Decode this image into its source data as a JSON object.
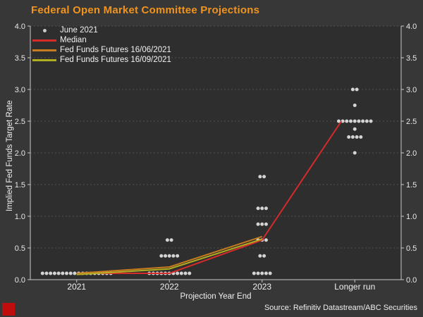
{
  "header": {
    "title": "Federal Open Market Committee Projections",
    "title_color": "#f0941e"
  },
  "footer": {
    "source": "Source: Refinitiv Datastream/ABC Securities",
    "logo_color": "#bf0d0d"
  },
  "chart_data": {
    "type": "scatter",
    "title": "Federal Open Market Committee Projections",
    "xlabel": "Projection Year End",
    "ylabel": "Implied Fed Funds Target Rate",
    "ylim": [
      0.0,
      4.0
    ],
    "ytick_step": 0.5,
    "ytick_labels": [
      "0.0",
      "0.5",
      "1.0",
      "1.5",
      "2.0",
      "2.5",
      "3.0",
      "3.5",
      "4.0"
    ],
    "dual_y_axis": true,
    "grid": "dashed horizontal every 0.5",
    "legend_position": "top-left",
    "categories": [
      "2021",
      "2022",
      "2023",
      "Longer run"
    ],
    "dot_plot": {
      "name": "June 2021",
      "color": "#d4d4d4",
      "distributions": [
        {
          "category": "2021",
          "dots": [
            {
              "rate": 0.1,
              "count": 18
            }
          ]
        },
        {
          "category": "2022",
          "dots": [
            {
              "rate": 0.1,
              "count": 11
            },
            {
              "rate": 0.375,
              "count": 5
            },
            {
              "rate": 0.625,
              "count": 2
            }
          ]
        },
        {
          "category": "2023",
          "dots": [
            {
              "rate": 0.1,
              "count": 5
            },
            {
              "rate": 0.375,
              "count": 2
            },
            {
              "rate": 0.625,
              "count": 3
            },
            {
              "rate": 0.875,
              "count": 3
            },
            {
              "rate": 1.125,
              "count": 3
            },
            {
              "rate": 1.625,
              "count": 2
            }
          ]
        },
        {
          "category": "Longer run",
          "dots": [
            {
              "rate": 2.0,
              "count": 1
            },
            {
              "rate": 2.25,
              "count": 4
            },
            {
              "rate": 2.375,
              "count": 1
            },
            {
              "rate": 2.5,
              "count": 9
            },
            {
              "rate": 2.75,
              "count": 1
            },
            {
              "rate": 3.0,
              "count": 2
            }
          ]
        }
      ]
    },
    "line_series": [
      {
        "name": "Median",
        "color": "#d42b2b",
        "x": [
          "2021",
          "2022",
          "2023",
          "Longer run"
        ],
        "values": [
          0.1,
          0.1,
          0.625,
          2.5
        ]
      },
      {
        "name": "Fed Funds Futures 16/06/2021",
        "color": "#c67b1f",
        "x": [
          "2021",
          "2022",
          "2023"
        ],
        "values": [
          0.1,
          0.2,
          0.68
        ]
      },
      {
        "name": "Fed Funds Futures 16/09/2021",
        "color": "#b3ad22",
        "x": [
          "2021",
          "2022",
          "2023"
        ],
        "values": [
          0.08,
          0.17,
          0.64
        ]
      }
    ]
  }
}
